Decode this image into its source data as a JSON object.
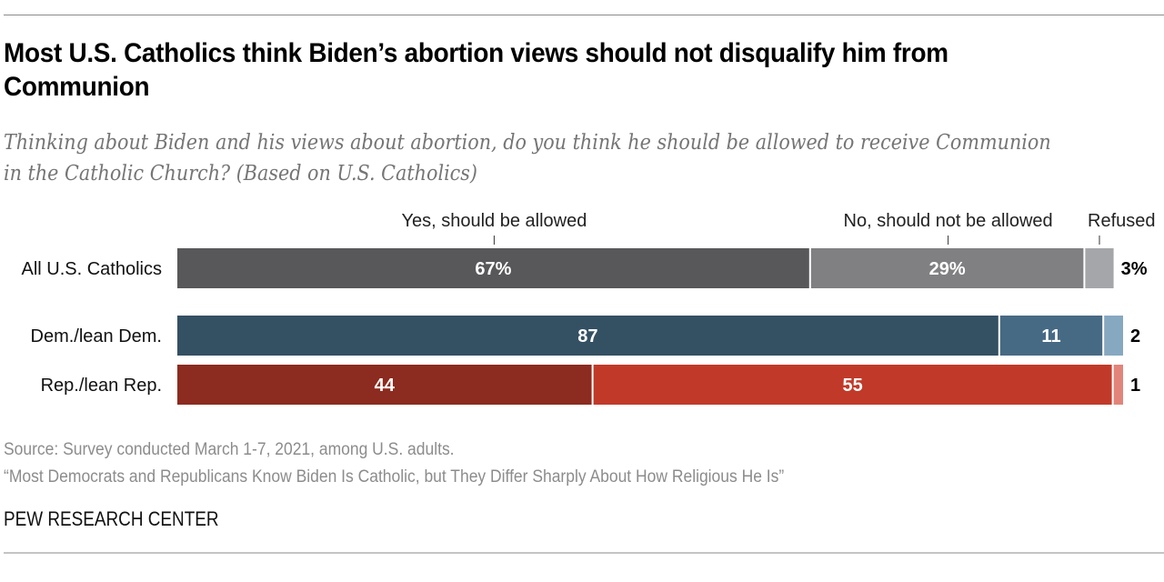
{
  "title": "Most U.S. Catholics think Biden’s abortion views should not disqualify him from Communion",
  "subtitle": "Thinking about Biden and his views about abortion, do you think he should be allowed to receive Communion in the Catholic Church? (Based on U.S. Catholics)",
  "footer": {
    "source": "Source: Survey conducted March 1-7, 2021, among U.S. adults.",
    "report": "“Most Democrats and Republicans Know Biden Is Catholic, but They Differ Sharply About How Religious He Is”",
    "brand": "PEW RESEARCH CENTER"
  },
  "chart_data": {
    "type": "bar",
    "orientation": "horizontal",
    "stacked": true,
    "title": "Most U.S. Catholics think Biden’s abortion views should not disqualify him from Communion",
    "xlabel": "",
    "ylabel": "",
    "xlim": [
      0,
      100
    ],
    "grid": false,
    "legend": "top",
    "categories": [
      "All U.S. Catholics",
      "Dem./lean Dem.",
      "Rep./lean Rep."
    ],
    "series": [
      {
        "name": "Yes, should be allowed",
        "values": [
          67,
          87,
          44
        ],
        "labels": [
          "67%",
          "87",
          "44"
        ]
      },
      {
        "name": "No, should not be allowed",
        "values": [
          29,
          11,
          55
        ],
        "labels": [
          "29%",
          "11",
          "55"
        ]
      },
      {
        "name": "Refused",
        "values": [
          3,
          2,
          1
        ],
        "labels": [
          "3%",
          "2",
          "1"
        ]
      }
    ],
    "colors": [
      [
        "#58585a",
        "#808083",
        "#a5a6a9"
      ],
      [
        "#345063",
        "#476a84",
        "#86a8c0"
      ],
      [
        "#8c2b1f",
        "#c13a29",
        "#e2847a"
      ]
    ],
    "label_color_inside": "#ffffff",
    "label_color_outside": "#000000"
  }
}
